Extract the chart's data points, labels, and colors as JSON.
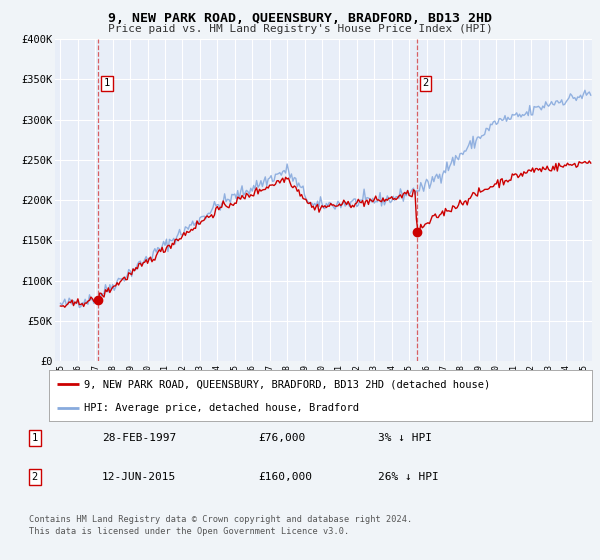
{
  "title": "9, NEW PARK ROAD, QUEENSBURY, BRADFORD, BD13 2HD",
  "subtitle": "Price paid vs. HM Land Registry's House Price Index (HPI)",
  "bg_color": "#f0f4f8",
  "plot_bg_color": "#e8eef8",
  "grid_color": "#ffffff",
  "sale1_date": 1997.162,
  "sale1_price": 76000,
  "sale2_date": 2015.44,
  "sale2_price": 160000,
  "red_line_color": "#cc0000",
  "blue_line_color": "#88aadd",
  "marker_color": "#cc0000",
  "legend_entry1": "9, NEW PARK ROAD, QUEENSBURY, BRADFORD, BD13 2HD (detached house)",
  "legend_entry2": "HPI: Average price, detached house, Bradford",
  "annotation1_date": "28-FEB-1997",
  "annotation1_price": "£76,000",
  "annotation1_hpi": "3% ↓ HPI",
  "annotation2_date": "12-JUN-2015",
  "annotation2_price": "£160,000",
  "annotation2_hpi": "26% ↓ HPI",
  "footer1": "Contains HM Land Registry data © Crown copyright and database right 2024.",
  "footer2": "This data is licensed under the Open Government Licence v3.0.",
  "ylim": [
    0,
    400000
  ],
  "xlim": [
    1994.7,
    2025.5
  ],
  "yticks": [
    0,
    50000,
    100000,
    150000,
    200000,
    250000,
    300000,
    350000,
    400000
  ],
  "ytick_labels": [
    "£0",
    "£50K",
    "£100K",
    "£150K",
    "£200K",
    "£250K",
    "£300K",
    "£350K",
    "£400K"
  ]
}
